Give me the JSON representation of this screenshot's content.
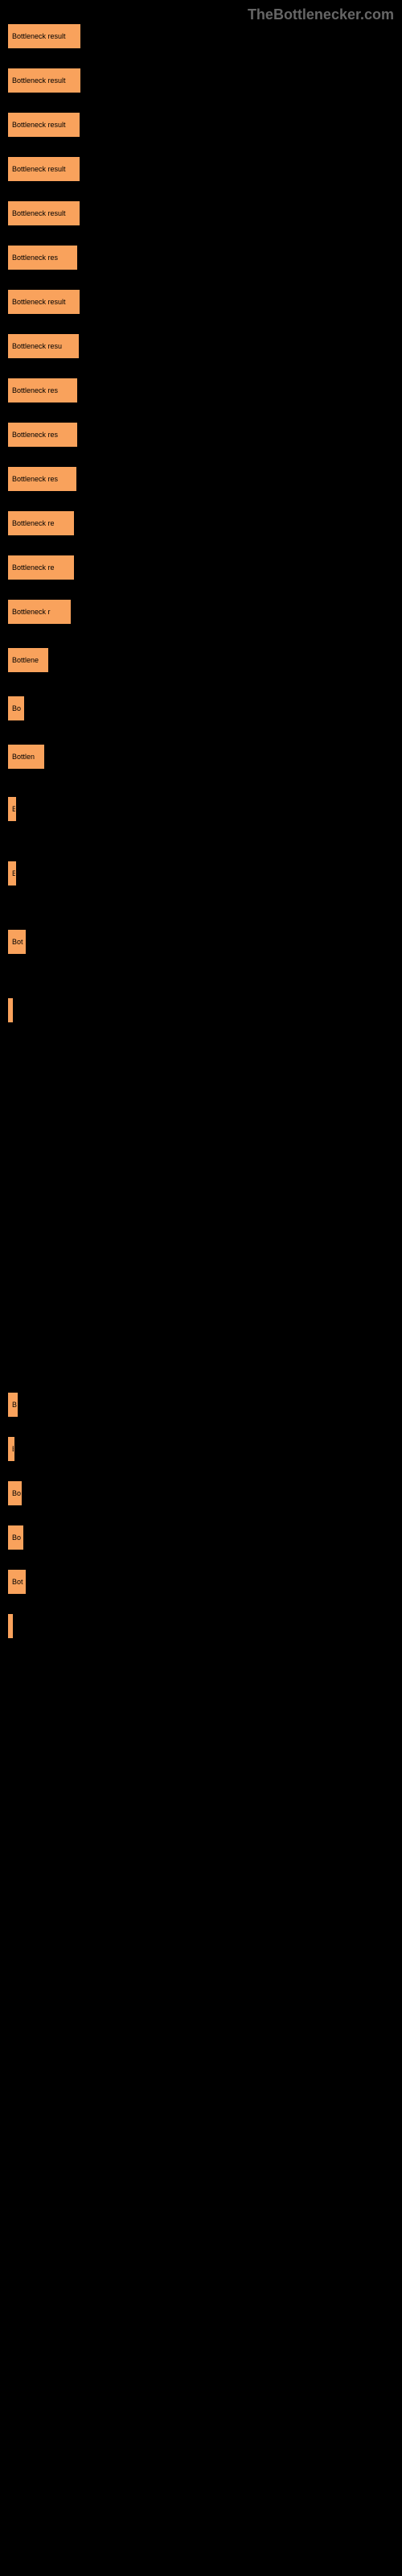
{
  "brand": "TheBottlenecker.com",
  "chart": {
    "type": "bar-horizontal",
    "background_color": "#000000",
    "bar_color": "#f9a25c",
    "bar_border_color": "#f9a25c",
    "value_text_color": "#ffffff",
    "bar_text_color": "#000000",
    "max_width": 450,
    "bars": [
      {
        "label": "Bottleneck result",
        "width": 90,
        "spacing": 25
      },
      {
        "label": "Bottleneck result",
        "width": 90,
        "spacing": 25
      },
      {
        "label": "Bottleneck result",
        "width": 89,
        "spacing": 25
      },
      {
        "label": "Bottleneck result",
        "width": 89,
        "spacing": 25
      },
      {
        "label": "Bottleneck result",
        "width": 89,
        "spacing": 25
      },
      {
        "label": "Bottleneck res",
        "width": 86,
        "spacing": 25
      },
      {
        "label": "Bottleneck result",
        "width": 89,
        "spacing": 25
      },
      {
        "label": "Bottleneck resu",
        "width": 88,
        "spacing": 25
      },
      {
        "label": "Bottleneck res",
        "width": 86,
        "spacing": 25
      },
      {
        "label": "Bottleneck res",
        "width": 86,
        "spacing": 25
      },
      {
        "label": "Bottleneck res",
        "width": 85,
        "spacing": 25
      },
      {
        "label": "Bottleneck re",
        "width": 82,
        "spacing": 25
      },
      {
        "label": "Bottleneck re",
        "width": 82,
        "spacing": 25
      },
      {
        "label": "Bottleneck r",
        "width": 78,
        "spacing": 30
      },
      {
        "label": "Bottlene",
        "width": 50,
        "spacing": 30
      },
      {
        "label": "Bo",
        "width": 20,
        "spacing": 30
      },
      {
        "label": "Bottlen",
        "width": 45,
        "spacing": 35
      },
      {
        "label": "B",
        "width": 10,
        "spacing": 50
      },
      {
        "label": "B",
        "width": 10,
        "spacing": 55
      },
      {
        "label": "Bot",
        "width": 22,
        "spacing": 55
      },
      {
        "label": "",
        "width": 5,
        "spacing": 460
      },
      {
        "label": "B",
        "width": 12,
        "spacing": 25
      },
      {
        "label": "B",
        "width": 8,
        "spacing": 25
      },
      {
        "label": "Bo",
        "width": 17,
        "spacing": 25
      },
      {
        "label": "Bo",
        "width": 19,
        "spacing": 25
      },
      {
        "label": "Bot",
        "width": 22,
        "spacing": 25
      },
      {
        "label": "",
        "width": 5,
        "spacing": 25
      }
    ]
  }
}
